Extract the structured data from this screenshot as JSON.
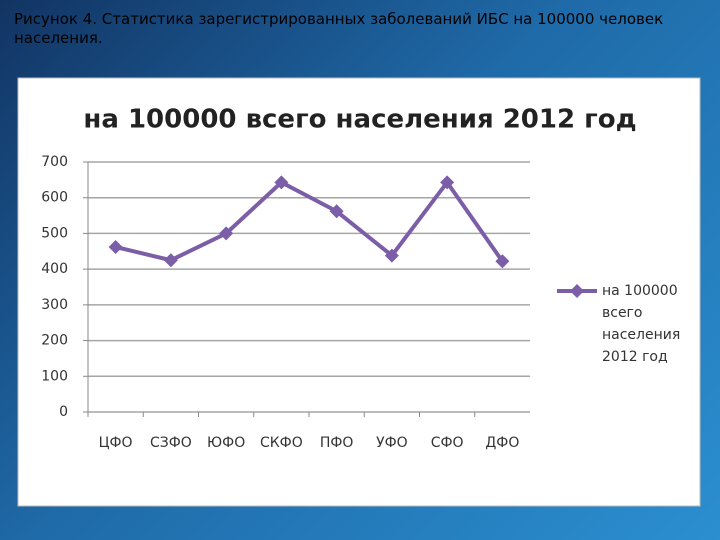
{
  "caption": "Рисунок 4. Статистика зарегистрированных заболеваний ИБС на 100000 человек населения.",
  "chart_data": {
    "type": "line",
    "title": "на 100000 всего населения 2012 год",
    "categories": [
      "ЦФО",
      "СЗФО",
      "ЮФО",
      "СКФО",
      "ПФО",
      "УФО",
      "СФО",
      "ДФО"
    ],
    "series": [
      {
        "name": "на 100000 всего населения 2012 год",
        "color": "#7b5ea7",
        "values": [
          462,
          425,
          500,
          643,
          562,
          438,
          643,
          422
        ]
      }
    ],
    "ylim": [
      0,
      700
    ],
    "yticks": [
      0,
      100,
      200,
      300,
      400,
      500,
      600,
      700
    ],
    "grid": true,
    "legend": "right"
  }
}
